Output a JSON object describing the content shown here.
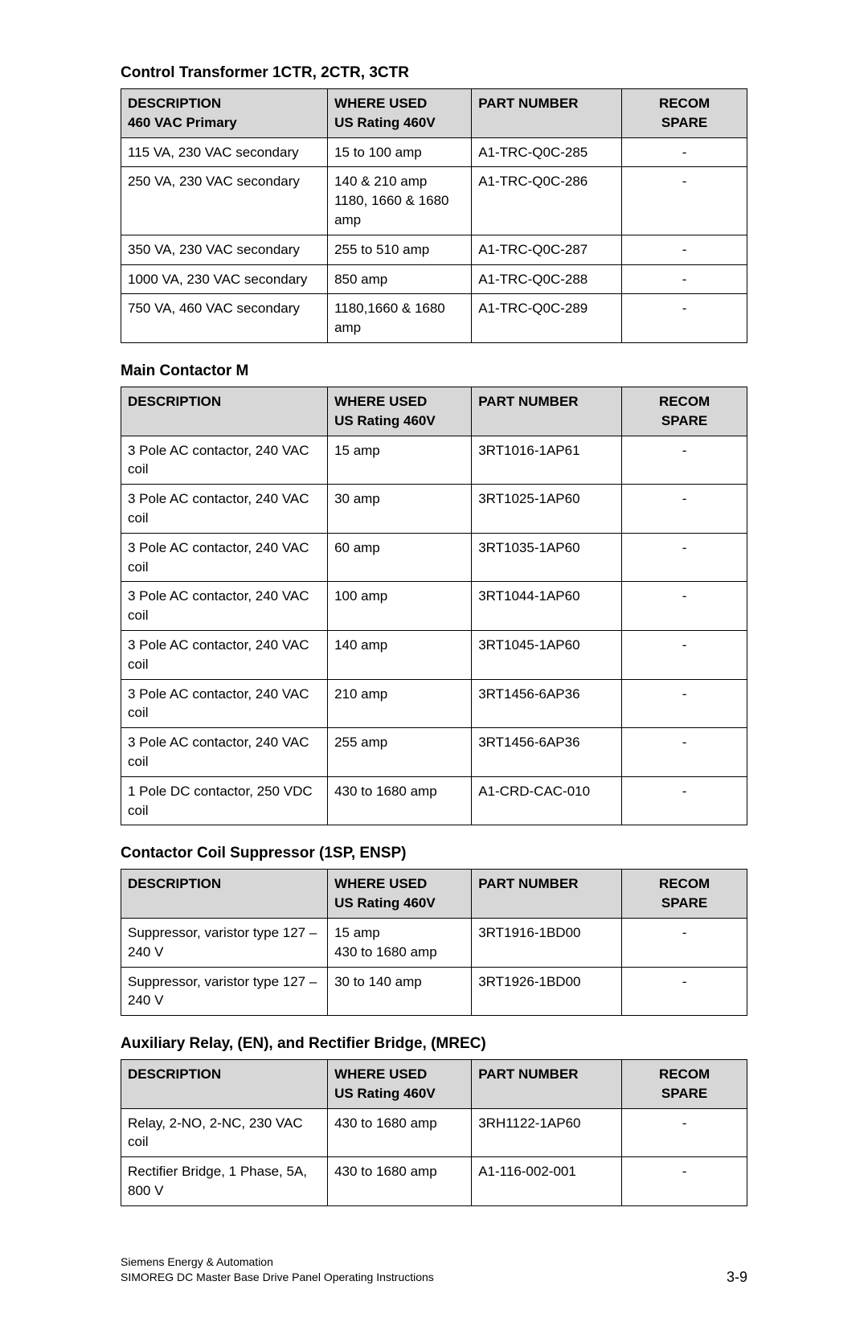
{
  "headers": {
    "description": "DESCRIPTION",
    "where_used": "WHERE USED",
    "where_sub": "US Rating 460V",
    "part_number": "PART NUMBER",
    "recom": "RECOM",
    "spare": "SPARE"
  },
  "sections": [
    {
      "title": "Control Transformer 1CTR, 2CTR, 3CTR",
      "desc_sub": "460 VAC Primary",
      "rows": [
        {
          "desc": "115 VA, 230 VAC secondary",
          "where": "15 to 100 amp",
          "part": "A1-TRC-Q0C-285",
          "spare": "-"
        },
        {
          "desc": "250 VA, 230 VAC secondary",
          "where": "140 & 210 amp\n1180, 1660 & 1680 amp",
          "part": "A1-TRC-Q0C-286",
          "spare": "-"
        },
        {
          "desc": "350 VA, 230 VAC secondary",
          "where": "255 to 510 amp",
          "part": "A1-TRC-Q0C-287",
          "spare": "-"
        },
        {
          "desc": "1000 VA, 230 VAC secondary",
          "where": "850 amp",
          "part": "A1-TRC-Q0C-288",
          "spare": "-"
        },
        {
          "desc": "750 VA, 460 VAC secondary",
          "where": "1180,1660 & 1680 amp",
          "part": "A1-TRC-Q0C-289",
          "spare": "-"
        }
      ]
    },
    {
      "title": "Main Contactor M",
      "desc_sub": "",
      "rows": [
        {
          "desc": "3 Pole AC contactor, 240 VAC coil",
          "where": "15 amp",
          "part": "3RT1016-1AP61",
          "spare": "-"
        },
        {
          "desc": "3 Pole AC contactor, 240 VAC coil",
          "where": "30 amp",
          "part": "3RT1025-1AP60",
          "spare": "-"
        },
        {
          "desc": "3 Pole AC contactor, 240 VAC coil",
          "where": "60 amp",
          "part": "3RT1035-1AP60",
          "spare": "-"
        },
        {
          "desc": "3 Pole AC contactor, 240 VAC coil",
          "where": "100 amp",
          "part": "3RT1044-1AP60",
          "spare": "-"
        },
        {
          "desc": "3 Pole AC contactor, 240 VAC coil",
          "where": "140 amp",
          "part": "3RT1045-1AP60",
          "spare": "-"
        },
        {
          "desc": "3 Pole AC contactor, 240 VAC coil",
          "where": "210 amp",
          "part": "3RT1456-6AP36",
          "spare": "-"
        },
        {
          "desc": "3 Pole AC contactor, 240 VAC coil",
          "where": "255 amp",
          "part": "3RT1456-6AP36",
          "spare": "-"
        },
        {
          "desc": "1 Pole DC contactor, 250 VDC coil",
          "where": "430 to 1680 amp",
          "part": "A1-CRD-CAC-010",
          "spare": "-"
        }
      ]
    },
    {
      "title": "Contactor Coil Suppressor (1SP, ENSP)",
      "desc_sub": "",
      "rows": [
        {
          "desc": "Suppressor, varistor type 127 – 240 V",
          "where": "15 amp\n430 to 1680 amp",
          "part": "3RT1916-1BD00",
          "spare": "-"
        },
        {
          "desc": "Suppressor, varistor type 127 – 240 V",
          "where": "30 to 140 amp",
          "part": "3RT1926-1BD00",
          "spare": "-"
        }
      ]
    },
    {
      "title": "Auxiliary Relay, (EN), and Rectifier Bridge, (MREC)",
      "desc_sub": "",
      "rows": [
        {
          "desc": "Relay, 2-NO, 2-NC, 230 VAC coil",
          "where": "430 to 1680 amp",
          "part": "3RH1122-1AP60",
          "spare": "-"
        },
        {
          "desc": "Rectifier Bridge, 1 Phase, 5A, 800 V",
          "where": "430 to 1680 amp",
          "part": "A1-116-002-001",
          "spare": "-"
        }
      ]
    }
  ],
  "footer": {
    "line1": "Siemens Energy & Automation",
    "line2": "SIMOREG DC Master Base Drive Panel   Operating Instructions",
    "page": "3-9"
  }
}
